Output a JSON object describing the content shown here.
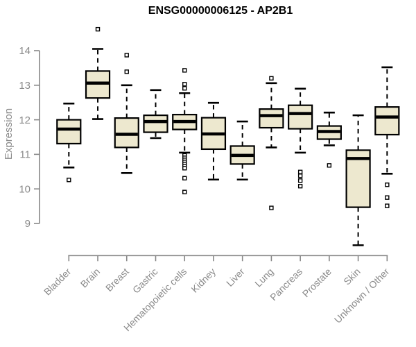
{
  "chart_data": {
    "type": "boxplot",
    "title": "ENSG00000006125 - AP2B1",
    "ylabel": "Expression",
    "xlabel": "",
    "y_ticks": [
      9,
      10,
      11,
      12,
      13,
      14
    ],
    "ylim": [
      8.2,
      14.8
    ],
    "grid": false,
    "legend": "none",
    "x_label_rotation_deg": 45,
    "categories": [
      "Bladder",
      "Brain",
      "Breast",
      "Gastric",
      "Hematopoietic cells",
      "Kidney",
      "Liver",
      "Lung",
      "Pancreas",
      "Prostate",
      "Skin",
      "Unknown / Other"
    ],
    "boxes": [
      {
        "category": "Bladder",
        "whisker_low": 10.62,
        "q1": 11.31,
        "median": 11.73,
        "q3": 12.0,
        "whisker_high": 12.47,
        "outliers": [
          10.26
        ]
      },
      {
        "category": "Brain",
        "whisker_low": 12.02,
        "q1": 12.63,
        "median": 13.06,
        "q3": 13.41,
        "whisker_high": 14.05,
        "outliers": [
          14.62
        ]
      },
      {
        "category": "Breast",
        "whisker_low": 10.46,
        "q1": 11.2,
        "median": 11.58,
        "q3": 12.05,
        "whisker_high": 13.0,
        "outliers": [
          13.87,
          13.39
        ]
      },
      {
        "category": "Gastric",
        "whisker_low": 11.47,
        "q1": 11.64,
        "median": 11.95,
        "q3": 12.13,
        "whisker_high": 12.86,
        "outliers": []
      },
      {
        "category": "Hematopoietic cells",
        "whisker_low": 11.05,
        "q1": 11.72,
        "median": 11.95,
        "q3": 12.15,
        "whisker_high": 12.77,
        "outliers": [
          13.43,
          13.03,
          12.91,
          10.97,
          10.9,
          10.84,
          10.78,
          10.72,
          10.66,
          10.6,
          10.31,
          9.91
        ]
      },
      {
        "category": "Kidney",
        "whisker_low": 10.27,
        "q1": 11.15,
        "median": 11.59,
        "q3": 12.06,
        "whisker_high": 12.49,
        "outliers": []
      },
      {
        "category": "Liver",
        "whisker_low": 10.27,
        "q1": 10.72,
        "median": 10.97,
        "q3": 11.24,
        "whisker_high": 11.95,
        "outliers": []
      },
      {
        "category": "Lung",
        "whisker_low": 11.2,
        "q1": 11.77,
        "median": 12.12,
        "q3": 12.31,
        "whisker_high": 13.06,
        "outliers": [
          13.2,
          9.45
        ]
      },
      {
        "category": "Pancreas",
        "whisker_low": 11.05,
        "q1": 11.74,
        "median": 12.18,
        "q3": 12.42,
        "whisker_high": 12.9,
        "outliers": [
          10.49,
          10.38,
          10.24,
          10.08
        ]
      },
      {
        "category": "Prostate",
        "whisker_low": 11.26,
        "q1": 11.44,
        "median": 11.66,
        "q3": 11.82,
        "whisker_high": 12.21,
        "outliers": [
          10.68
        ]
      },
      {
        "category": "Skin",
        "whisker_low": 8.37,
        "q1": 9.47,
        "median": 10.88,
        "q3": 11.12,
        "whisker_high": 12.13,
        "outliers": []
      },
      {
        "category": "Unknown / Other",
        "whisker_low": 10.44,
        "q1": 11.57,
        "median": 12.08,
        "q3": 12.37,
        "whisker_high": 13.52,
        "outliers": [
          10.12,
          9.75,
          9.51
        ]
      }
    ],
    "colors": {
      "box_fill": "#EDE8CF",
      "box_stroke": "#000000",
      "median": "#000000",
      "whisker": "#000000",
      "outlier_fill": "#ffffff",
      "outlier_stroke": "#000000",
      "axis": "#878787",
      "tick_label": "#8a8a8a",
      "title": "#000000"
    }
  }
}
